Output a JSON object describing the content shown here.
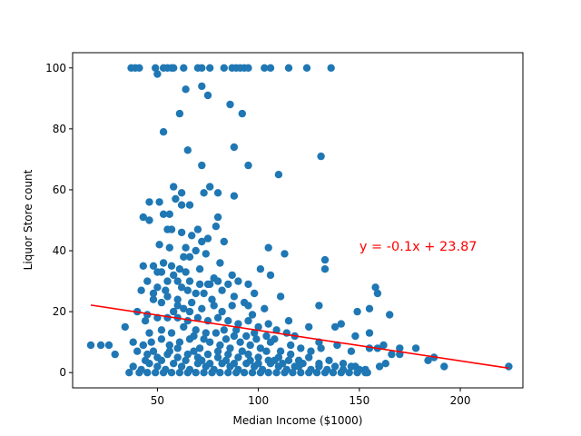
{
  "chart_data": {
    "type": "scatter",
    "xlabel": "Median Income ($1000)",
    "ylabel": "Liquor Store count",
    "xlim": [
      8,
      231
    ],
    "ylim": [
      -5,
      105
    ],
    "xticks": [
      50,
      100,
      150,
      200
    ],
    "yticks": [
      0,
      20,
      40,
      60,
      80,
      100
    ],
    "grid": false,
    "point_color": "#1f77b4",
    "line_color": "#ff0000",
    "regression": {
      "slope": -0.1,
      "intercept": 23.87,
      "x_range": [
        17,
        224
      ]
    },
    "annotation": {
      "text": "y = -0.1x + 23.87",
      "x": 150,
      "y": 40
    },
    "points": [
      [
        37,
        100
      ],
      [
        39,
        100
      ],
      [
        41,
        100
      ],
      [
        49,
        100
      ],
      [
        50,
        98
      ],
      [
        53,
        100
      ],
      [
        55,
        100
      ],
      [
        57,
        100
      ],
      [
        58,
        100
      ],
      [
        63,
        100
      ],
      [
        70,
        100
      ],
      [
        72,
        100
      ],
      [
        76,
        100
      ],
      [
        83,
        100
      ],
      [
        87,
        100
      ],
      [
        89,
        100
      ],
      [
        91,
        100
      ],
      [
        93,
        100
      ],
      [
        95,
        100
      ],
      [
        103,
        100
      ],
      [
        106,
        100
      ],
      [
        115,
        100
      ],
      [
        124,
        100
      ],
      [
        136,
        100
      ],
      [
        64,
        93
      ],
      [
        72,
        94
      ],
      [
        75,
        91
      ],
      [
        86,
        88
      ],
      [
        92,
        85
      ],
      [
        61,
        85
      ],
      [
        53,
        79
      ],
      [
        88,
        74
      ],
      [
        65,
        73
      ],
      [
        131,
        71
      ],
      [
        72,
        68
      ],
      [
        95,
        68
      ],
      [
        110,
        65
      ],
      [
        76,
        61
      ],
      [
        58,
        61
      ],
      [
        62,
        59
      ],
      [
        73,
        59
      ],
      [
        80,
        59
      ],
      [
        88,
        58
      ],
      [
        59,
        57
      ],
      [
        46,
        56
      ],
      [
        51,
        56
      ],
      [
        62,
        55
      ],
      [
        66,
        55
      ],
      [
        53,
        52
      ],
      [
        56,
        52
      ],
      [
        43,
        51
      ],
      [
        46,
        50
      ],
      [
        80,
        51
      ],
      [
        57,
        47
      ],
      [
        70,
        47
      ],
      [
        55,
        47
      ],
      [
        79,
        48
      ],
      [
        62,
        46
      ],
      [
        67,
        45
      ],
      [
        72,
        43
      ],
      [
        75,
        44
      ],
      [
        83,
        43
      ],
      [
        105,
        41
      ],
      [
        113,
        39
      ],
      [
        51,
        42
      ],
      [
        56,
        41
      ],
      [
        64,
        41
      ],
      [
        69,
        40
      ],
      [
        63,
        38
      ],
      [
        74,
        39
      ],
      [
        81,
        36
      ],
      [
        57,
        35
      ],
      [
        66,
        38
      ],
      [
        48,
        35
      ],
      [
        43,
        35
      ],
      [
        52,
        33
      ],
      [
        61,
        34
      ],
      [
        71,
        34
      ],
      [
        101,
        34
      ],
      [
        106,
        32
      ],
      [
        133,
        37
      ],
      [
        133,
        34
      ],
      [
        78,
        31
      ],
      [
        87,
        32
      ],
      [
        45,
        30
      ],
      [
        55,
        30
      ],
      [
        60,
        30
      ],
      [
        66,
        30
      ],
      [
        71,
        29
      ],
      [
        76,
        29
      ],
      [
        80,
        30
      ],
      [
        85,
        29
      ],
      [
        90,
        30
      ],
      [
        95,
        29
      ],
      [
        50,
        28
      ],
      [
        42,
        27
      ],
      [
        65,
        27
      ],
      [
        73,
        26
      ],
      [
        82,
        27
      ],
      [
        98,
        26
      ],
      [
        111,
        25
      ],
      [
        88,
        25
      ],
      [
        55,
        25
      ],
      [
        48,
        24
      ],
      [
        60,
        24
      ],
      [
        52,
        23
      ],
      [
        67,
        23
      ],
      [
        78,
        22
      ],
      [
        95,
        22
      ],
      [
        103,
        21
      ],
      [
        130,
        22
      ],
      [
        158,
        28
      ],
      [
        159,
        26
      ],
      [
        149,
        20
      ],
      [
        155,
        21
      ],
      [
        165,
        19
      ],
      [
        40,
        20
      ],
      [
        45,
        19
      ],
      [
        50,
        18
      ],
      [
        55,
        18
      ],
      [
        60,
        18
      ],
      [
        65,
        17
      ],
      [
        70,
        18
      ],
      [
        75,
        17
      ],
      [
        80,
        18
      ],
      [
        85,
        17
      ],
      [
        90,
        16
      ],
      [
        95,
        17
      ],
      [
        100,
        15
      ],
      [
        105,
        16
      ],
      [
        115,
        17
      ],
      [
        125,
        15
      ],
      [
        138,
        15
      ],
      [
        141,
        16
      ],
      [
        44,
        17
      ],
      [
        58,
        20
      ],
      [
        63,
        21
      ],
      [
        69,
        14
      ],
      [
        74,
        13
      ],
      [
        83,
        14
      ],
      [
        88,
        12
      ],
      [
        98,
        13
      ],
      [
        108,
        11
      ],
      [
        118,
        12
      ],
      [
        130,
        10
      ],
      [
        148,
        12
      ],
      [
        155,
        13
      ],
      [
        34,
        15
      ],
      [
        38,
        10
      ],
      [
        43,
        9
      ],
      [
        47,
        10
      ],
      [
        52,
        11
      ],
      [
        56,
        9
      ],
      [
        61,
        10
      ],
      [
        66,
        11
      ],
      [
        71,
        8
      ],
      [
        76,
        10
      ],
      [
        81,
        9
      ],
      [
        86,
        8
      ],
      [
        91,
        10
      ],
      [
        96,
        9
      ],
      [
        101,
        8
      ],
      [
        106,
        10
      ],
      [
        111,
        7
      ],
      [
        116,
        9
      ],
      [
        121,
        8
      ],
      [
        126,
        7
      ],
      [
        131,
        8
      ],
      [
        139,
        9
      ],
      [
        146,
        7
      ],
      [
        155,
        8
      ],
      [
        159,
        8
      ],
      [
        162,
        9
      ],
      [
        166,
        6
      ],
      [
        170,
        6
      ],
      [
        170,
        8
      ],
      [
        178,
        8
      ],
      [
        184,
        4
      ],
      [
        187,
        5
      ],
      [
        192,
        2
      ],
      [
        224,
        2
      ],
      [
        17,
        9
      ],
      [
        22,
        9
      ],
      [
        26,
        9
      ],
      [
        29,
        6
      ],
      [
        40,
        7
      ],
      [
        45,
        6
      ],
      [
        50,
        5
      ],
      [
        55,
        6
      ],
      [
        60,
        5
      ],
      [
        65,
        6
      ],
      [
        70,
        5
      ],
      [
        75,
        6
      ],
      [
        80,
        5
      ],
      [
        85,
        6
      ],
      [
        90,
        5
      ],
      [
        95,
        6
      ],
      [
        100,
        5
      ],
      [
        105,
        4
      ],
      [
        110,
        5
      ],
      [
        115,
        4
      ],
      [
        120,
        4
      ],
      [
        125,
        5
      ],
      [
        130,
        3
      ],
      [
        135,
        4
      ],
      [
        142,
        3
      ],
      [
        148,
        2
      ],
      [
        153,
        1
      ],
      [
        160,
        2
      ],
      [
        163,
        3
      ],
      [
        38,
        2
      ],
      [
        42,
        1
      ],
      [
        46,
        3
      ],
      [
        50,
        2
      ],
      [
        54,
        1
      ],
      [
        58,
        3
      ],
      [
        62,
        2
      ],
      [
        66,
        1
      ],
      [
        70,
        3
      ],
      [
        74,
        2
      ],
      [
        78,
        1
      ],
      [
        82,
        3
      ],
      [
        86,
        2
      ],
      [
        90,
        1
      ],
      [
        94,
        3
      ],
      [
        98,
        2
      ],
      [
        102,
        1
      ],
      [
        106,
        3
      ],
      [
        110,
        2
      ],
      [
        114,
        1
      ],
      [
        118,
        2
      ],
      [
        122,
        3
      ],
      [
        126,
        1
      ],
      [
        130,
        2
      ],
      [
        134,
        1
      ],
      [
        138,
        2
      ],
      [
        142,
        1
      ],
      [
        146,
        2
      ],
      [
        150,
        1
      ],
      [
        154,
        0
      ],
      [
        36,
        0
      ],
      [
        41,
        0
      ],
      [
        45,
        0
      ],
      [
        49,
        0
      ],
      [
        53,
        0
      ],
      [
        57,
        0
      ],
      [
        61,
        0
      ],
      [
        65,
        0
      ],
      [
        69,
        0
      ],
      [
        73,
        0
      ],
      [
        77,
        0
      ],
      [
        81,
        0
      ],
      [
        85,
        0
      ],
      [
        89,
        0
      ],
      [
        93,
        0
      ],
      [
        97,
        0
      ],
      [
        101,
        0
      ],
      [
        105,
        0
      ],
      [
        109,
        0
      ],
      [
        113,
        0
      ],
      [
        117,
        0
      ],
      [
        121,
        0
      ],
      [
        125,
        0
      ],
      [
        129,
        0
      ],
      [
        133,
        0
      ],
      [
        137,
        0
      ],
      [
        141,
        0
      ],
      [
        145,
        0
      ],
      [
        149,
        0
      ],
      [
        153,
        0
      ],
      [
        44,
        4
      ],
      [
        48,
        7
      ],
      [
        52,
        4
      ],
      [
        56,
        7
      ],
      [
        60,
        8
      ],
      [
        64,
        4
      ],
      [
        68,
        7
      ],
      [
        72,
        4
      ],
      [
        76,
        3
      ],
      [
        80,
        7
      ],
      [
        84,
        4
      ],
      [
        88,
        3
      ],
      [
        92,
        7
      ],
      [
        96,
        4
      ],
      [
        100,
        3
      ],
      [
        104,
        7
      ],
      [
        108,
        4
      ],
      [
        112,
        3
      ],
      [
        116,
        6
      ],
      [
        120,
        2
      ],
      [
        46,
        13
      ],
      [
        52,
        14
      ],
      [
        57,
        13
      ],
      [
        63,
        15
      ],
      [
        68,
        12
      ],
      [
        73,
        11
      ],
      [
        79,
        13
      ],
      [
        84,
        11
      ],
      [
        89,
        14
      ],
      [
        94,
        12
      ],
      [
        99,
        11
      ],
      [
        104,
        12
      ],
      [
        109,
        14
      ],
      [
        114,
        13
      ],
      [
        60,
        22
      ],
      [
        66,
        20
      ],
      [
        72,
        21
      ],
      [
        77,
        24
      ],
      [
        82,
        20
      ],
      [
        87,
        22
      ],
      [
        93,
        23
      ],
      [
        97,
        19
      ],
      [
        54,
        27
      ],
      [
        48,
        26
      ],
      [
        62,
        28
      ],
      [
        69,
        26
      ],
      [
        58,
        32
      ],
      [
        50,
        33
      ],
      [
        53,
        36
      ],
      [
        64,
        33
      ],
      [
        75,
        29
      ]
    ]
  }
}
